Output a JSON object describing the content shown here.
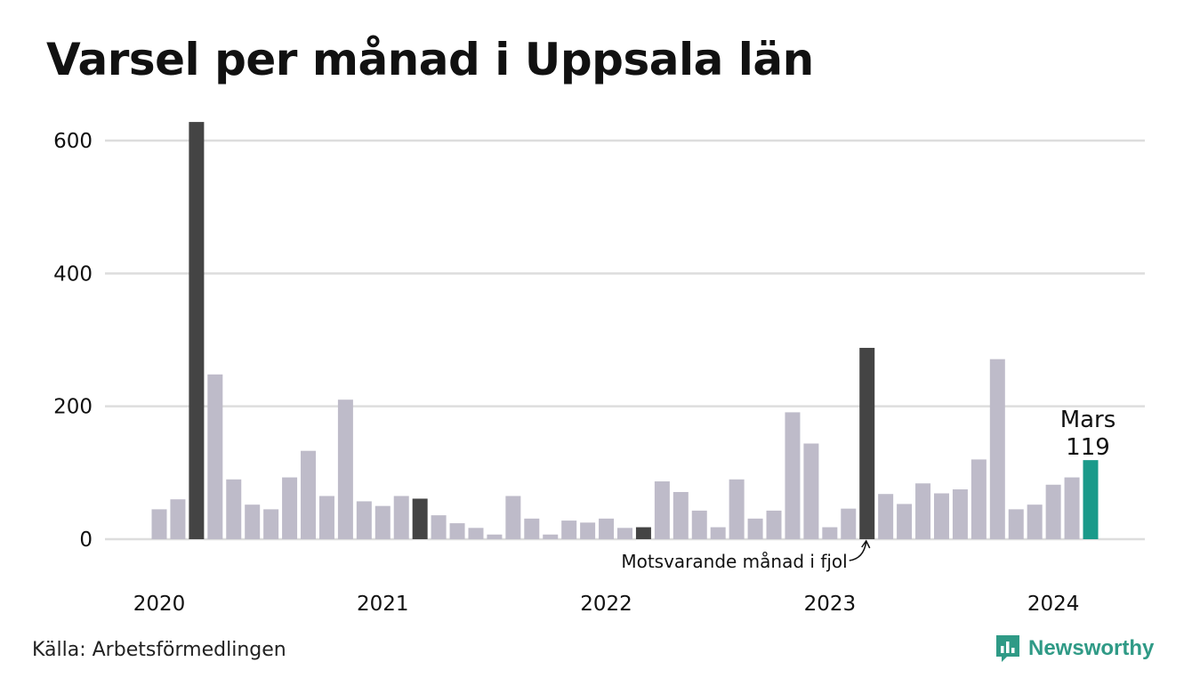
{
  "title": "Varsel per månad i Uppsala län",
  "source": "Källa: Arbetsförmedlingen",
  "brand": {
    "name": "Newsworthy",
    "icon": "newsworthy-logo-icon",
    "color": "#2f9a86"
  },
  "colors": {
    "bar": "#bebbc9",
    "same_month": "#444444",
    "current": "#1a9a8a",
    "grid": "#dddddd"
  },
  "chart_data": {
    "type": "bar",
    "title": "Varsel per månad i Uppsala län",
    "xlabel": "",
    "ylabel": "",
    "ylim": [
      0,
      640
    ],
    "yticks": [
      0,
      200,
      400,
      600
    ],
    "xtick_labels": [
      {
        "label": "2020",
        "index": 0
      },
      {
        "label": "2021",
        "index": 12
      },
      {
        "label": "2022",
        "index": 24
      },
      {
        "label": "2023",
        "index": 36
      },
      {
        "label": "2024",
        "index": 48
      }
    ],
    "grid": true,
    "values": [
      45,
      60,
      628,
      248,
      90,
      52,
      45,
      93,
      133,
      65,
      210,
      57,
      50,
      65,
      61,
      36,
      24,
      17,
      7,
      65,
      31,
      7,
      28,
      25,
      31,
      17,
      18,
      87,
      71,
      43,
      18,
      90,
      31,
      43,
      191,
      144,
      18,
      46,
      288,
      68,
      53,
      84,
      69,
      75,
      120,
      271,
      45,
      52,
      82,
      93,
      119
    ],
    "highlight_indices": [
      2,
      14,
      26,
      38
    ],
    "current_index": 50,
    "annotations": {
      "current_label": "Mars",
      "current_value": "119",
      "same_month_note": "Motsvarande månad i fjol"
    }
  }
}
